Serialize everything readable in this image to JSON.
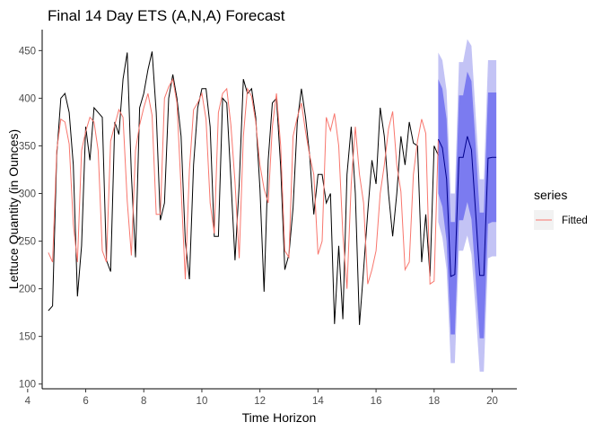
{
  "chart_data": {
    "type": "line",
    "title": "Final 14 Day ETS (A,N,A) Forecast",
    "xlabel": "Time Horizon",
    "ylabel": "Lettuce Quantity (in Ounces)",
    "xlim": [
      4.5,
      20.85
    ],
    "ylim": [
      95,
      472
    ],
    "x_ticks": [
      4,
      6,
      8,
      10,
      12,
      14,
      16,
      18,
      20
    ],
    "y_ticks": [
      100,
      150,
      200,
      250,
      300,
      350,
      400,
      450
    ],
    "grid": false,
    "legend": {
      "title": "series",
      "position": "right",
      "entries": [
        "Fitted"
      ]
    },
    "colors": {
      "actual": "#000000",
      "fitted": "#f8766d",
      "forecast": "#00008b",
      "band80": "#7b7bf0",
      "band95": "#c3c3f5"
    },
    "series": [
      {
        "role": "actual",
        "x": [
          4.714,
          4.857,
          5.0,
          5.143,
          5.286,
          5.429,
          5.571,
          5.714,
          5.857,
          6.0,
          6.143,
          6.286,
          6.429,
          6.571,
          6.714,
          6.857,
          7.0,
          7.143,
          7.286,
          7.429,
          7.571,
          7.714,
          7.857,
          8.0,
          8.143,
          8.286,
          8.429,
          8.571,
          8.714,
          8.857,
          9.0,
          9.143,
          9.286,
          9.429,
          9.571,
          9.714,
          9.857,
          10.0,
          10.143,
          10.286,
          10.429,
          10.571,
          10.714,
          10.857,
          11.0,
          11.143,
          11.286,
          11.429,
          11.571,
          11.714,
          11.857,
          12.0,
          12.143,
          12.286,
          12.429,
          12.571,
          12.714,
          12.857,
          13.0,
          13.143,
          13.286,
          13.429,
          13.571,
          13.714,
          13.857,
          14.0,
          14.143,
          14.286,
          14.429,
          14.571,
          14.714,
          14.857,
          15.0,
          15.143,
          15.286,
          15.429,
          15.571,
          15.714,
          15.857,
          16.0,
          16.143,
          16.286,
          16.429,
          16.571,
          16.714,
          16.857,
          17.0,
          17.143,
          17.286,
          17.429,
          17.571,
          17.714,
          17.857,
          18.0,
          18.143
        ],
        "y": [
          177,
          182,
          340,
          400,
          405,
          385,
          330,
          192,
          245,
          370,
          335,
          390,
          385,
          380,
          230,
          218,
          375,
          362,
          420,
          448,
          320,
          233,
          390,
          405,
          430,
          449,
          385,
          272,
          290,
          400,
          425,
          400,
          360,
          250,
          210,
          330,
          390,
          410,
          410,
          370,
          255,
          255,
          400,
          395,
          315,
          230,
          310,
          420,
          405,
          410,
          380,
          305,
          197,
          335,
          395,
          400,
          328,
          220,
          236,
          285,
          375,
          410,
          380,
          340,
          278,
          320,
          320,
          290,
          300,
          163,
          245,
          168,
          320,
          370,
          300,
          162,
          220,
          280,
          335,
          310,
          390,
          360,
          300,
          255,
          300,
          360,
          330,
          375,
          353,
          350,
          228,
          278,
          213,
          350,
          340
        ]
      },
      {
        "role": "fitted",
        "name": "Fitted",
        "x": [
          4.714,
          4.857,
          5.0,
          5.143,
          5.286,
          5.429,
          5.571,
          5.714,
          5.857,
          6.0,
          6.143,
          6.286,
          6.429,
          6.571,
          6.714,
          6.857,
          7.0,
          7.143,
          7.286,
          7.429,
          7.571,
          7.714,
          7.857,
          8.0,
          8.143,
          8.286,
          8.429,
          8.571,
          8.714,
          8.857,
          9.0,
          9.143,
          9.286,
          9.429,
          9.571,
          9.714,
          9.857,
          10.0,
          10.143,
          10.286,
          10.429,
          10.571,
          10.714,
          10.857,
          11.0,
          11.143,
          11.286,
          11.429,
          11.571,
          11.714,
          11.857,
          12.0,
          12.143,
          12.286,
          12.429,
          12.571,
          12.714,
          12.857,
          13.0,
          13.143,
          13.286,
          13.429,
          13.571,
          13.714,
          13.857,
          14.0,
          14.143,
          14.286,
          14.429,
          14.571,
          14.714,
          14.857,
          15.0,
          15.143,
          15.286,
          15.429,
          15.571,
          15.714,
          15.857,
          16.0,
          16.143,
          16.286,
          16.429,
          16.571,
          16.714,
          16.857,
          17.0,
          17.143,
          17.286,
          17.429,
          17.571,
          17.714,
          17.857,
          18.0,
          18.143
        ],
        "y": [
          238,
          228,
          345,
          378,
          375,
          352,
          268,
          228,
          345,
          365,
          380,
          375,
          345,
          240,
          228,
          355,
          372,
          388,
          380,
          292,
          235,
          345,
          372,
          390,
          405,
          382,
          278,
          278,
          400,
          412,
          420,
          395,
          305,
          210,
          325,
          388,
          395,
          405,
          378,
          290,
          258,
          385,
          405,
          410,
          372,
          312,
          232,
          360,
          410,
          402,
          375,
          330,
          305,
          290,
          370,
          405,
          350,
          240,
          233,
          360,
          380,
          395,
          365,
          340,
          320,
          236,
          250,
          380,
          366,
          384,
          350,
          257,
          200,
          310,
          370,
          320,
          290,
          205,
          220,
          240,
          300,
          330,
          368,
          386,
          330,
          302,
          220,
          228,
          320,
          355,
          378,
          363,
          205,
          208,
          356
        ]
      },
      {
        "role": "forecast",
        "x": [
          18.143,
          18.286,
          18.429,
          18.571,
          18.714,
          18.857,
          19.0,
          19.143,
          19.286,
          19.429,
          19.571,
          19.714,
          19.857,
          20.0,
          20.143
        ],
        "y": [
          357,
          348,
          315,
          213,
          215,
          338,
          338,
          360,
          346,
          281,
          214,
          214,
          337,
          338,
          338
        ],
        "lo80": [
          300,
          286,
          250,
          152,
          152,
          272,
          272,
          291,
          273,
          212,
          148,
          148,
          268,
          270,
          270
        ],
        "hi80": [
          420,
          410,
          378,
          270,
          270,
          403,
          403,
          428,
          418,
          352,
          280,
          280,
          406,
          406,
          406
        ],
        "lo95": [
          270,
          254,
          220,
          122,
          122,
          240,
          240,
          256,
          236,
          178,
          113,
          113,
          232,
          234,
          234
        ],
        "hi95": [
          448,
          440,
          408,
          300,
          300,
          438,
          438,
          462,
          455,
          384,
          315,
          315,
          440,
          440,
          440
        ]
      }
    ]
  }
}
